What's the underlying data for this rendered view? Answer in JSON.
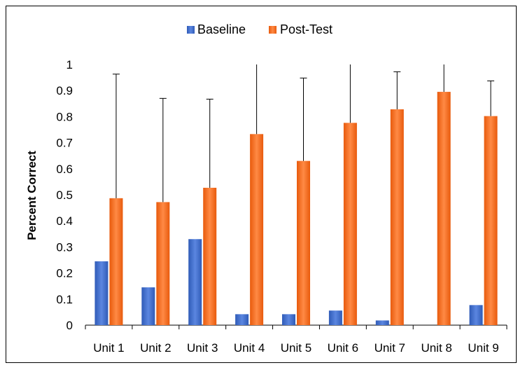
{
  "chart_data": {
    "type": "bar",
    "title": "",
    "xlabel": "",
    "ylabel": "Percent Correct",
    "ylim": [
      0,
      1
    ],
    "yticks": [
      "0",
      "0.1",
      "0.2",
      "0.3",
      "0.4",
      "0.5",
      "0.6",
      "0.7",
      "0.8",
      "0.9",
      "1"
    ],
    "grid": false,
    "legend_position": "top",
    "categories": [
      "Unit 1",
      "Unit 2",
      "Unit 3",
      "Unit 4",
      "Unit 5",
      "Unit 6",
      "Unit 7",
      "Unit 8",
      "Unit 9"
    ],
    "series": [
      {
        "name": "Baseline",
        "color": "#4472C4",
        "values": [
          0.245,
          0.145,
          0.33,
          0.042,
          0.042,
          0.056,
          0.018,
          0.0,
          0.077
        ]
      },
      {
        "name": "Post-Test",
        "color": "#F26B1F",
        "values": [
          0.487,
          0.472,
          0.527,
          0.733,
          0.63,
          0.776,
          0.828,
          0.895,
          0.802
        ],
        "error_upper": [
          0.963,
          0.87,
          0.867,
          1.0,
          0.948,
          1.0,
          0.972,
          1.0,
          0.937
        ]
      }
    ]
  }
}
